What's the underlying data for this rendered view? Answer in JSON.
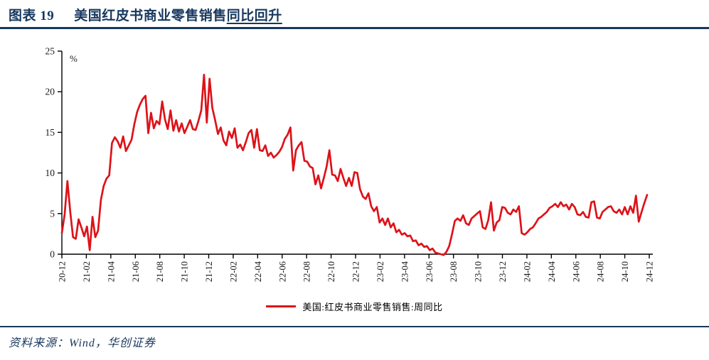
{
  "header": {
    "index_label": "图表 19",
    "title_main": "美国红皮书商业零售销售",
    "title_underlined": "同比回升"
  },
  "colors": {
    "accent_navy": "#17375E",
    "series_red": "#DE1219",
    "axis_black": "#000000"
  },
  "chart_data": {
    "type": "line",
    "title": "美国红皮书商业零售销售同比回升",
    "unit_label": "%",
    "ylabel": "",
    "xlabel": "",
    "ylim": [
      0,
      25
    ],
    "y_ticks": [
      0,
      5,
      10,
      15,
      20,
      25
    ],
    "grid": false,
    "legend_position": "bottom-center",
    "x_tick_labels": [
      "20-12",
      "21-02",
      "21-04",
      "21-06",
      "21-08",
      "21-10",
      "21-12",
      "22-02",
      "22-04",
      "22-06",
      "22-08",
      "22-10",
      "22-12",
      "23-02",
      "23-04",
      "23-06",
      "23-08",
      "23-10",
      "23-12",
      "24-02",
      "24-04",
      "24-06",
      "24-08",
      "24-10",
      "24-12"
    ],
    "x_frequency": "weekly",
    "series": [
      {
        "name": "美国:红皮书商业零售销售:周同比",
        "color": "#DE1219",
        "values": [
          2.6,
          4.9,
          9.0,
          5.2,
          2.1,
          1.9,
          4.3,
          3.3,
          2.2,
          3.4,
          0.5,
          4.6,
          2.1,
          2.9,
          6.7,
          8.4,
          9.3,
          9.7,
          13.7,
          14.4,
          13.9,
          13.1,
          14.5,
          12.7,
          13.4,
          14.1,
          16.0,
          17.5,
          18.4,
          19.1,
          19.5,
          14.9,
          17.4,
          15.5,
          16.4,
          16.0,
          18.8,
          16.6,
          15.4,
          17.7,
          15.2,
          16.5,
          15.1,
          16.1,
          14.9,
          15.7,
          16.5,
          15.4,
          15.3,
          16.4,
          17.7,
          22.1,
          16.2,
          21.6,
          18.0,
          16.5,
          14.8,
          15.6,
          14.0,
          13.4,
          15.1,
          14.3,
          15.5,
          13.1,
          13.5,
          12.8,
          13.8,
          14.9,
          15.3,
          13.1,
          15.4,
          12.8,
          12.7,
          13.4,
          12.1,
          12.5,
          11.9,
          12.2,
          12.6,
          13.2,
          14.2,
          14.7,
          15.6,
          10.3,
          12.8,
          13.4,
          13.8,
          11.5,
          11.4,
          10.8,
          10.6,
          8.6,
          9.7,
          8.1,
          9.4,
          10.8,
          12.8,
          9.8,
          9.7,
          9.0,
          10.5,
          9.4,
          8.4,
          9.4,
          8.4,
          10.1,
          10.0,
          8.0,
          7.1,
          6.8,
          7.5,
          5.9,
          5.3,
          5.8,
          3.9,
          4.4,
          3.6,
          4.4,
          3.3,
          3.8,
          2.7,
          3.0,
          2.4,
          2.6,
          2.2,
          2.3,
          1.6,
          1.7,
          1.1,
          1.3,
          0.9,
          1.0,
          0.5,
          0.7,
          0.2,
          0.1,
          0.0,
          -0.1,
          0.3,
          1.0,
          2.5,
          4.1,
          4.4,
          4.1,
          4.8,
          3.8,
          3.6,
          4.4,
          4.7,
          5.0,
          5.3,
          3.3,
          3.1,
          4.2,
          6.4,
          2.9,
          3.9,
          4.2,
          5.8,
          5.7,
          5.1,
          4.9,
          5.5,
          5.2,
          5.9,
          2.6,
          2.4,
          2.7,
          3.1,
          3.3,
          3.8,
          4.4,
          4.6,
          4.9,
          5.2,
          5.7,
          5.9,
          6.2,
          5.8,
          6.4,
          5.9,
          6.1,
          5.5,
          6.2,
          5.8,
          4.9,
          4.8,
          5.2,
          4.6,
          4.5,
          6.4,
          6.5,
          4.5,
          4.4,
          5.2,
          5.5,
          5.8,
          5.9,
          5.3,
          5.1,
          5.5,
          4.9,
          5.8,
          4.9,
          5.9,
          5.1,
          7.2,
          4.0,
          5.2,
          6.3,
          7.3
        ]
      }
    ]
  },
  "footer": {
    "source_text": "资料来源：Wind，华创证券"
  }
}
